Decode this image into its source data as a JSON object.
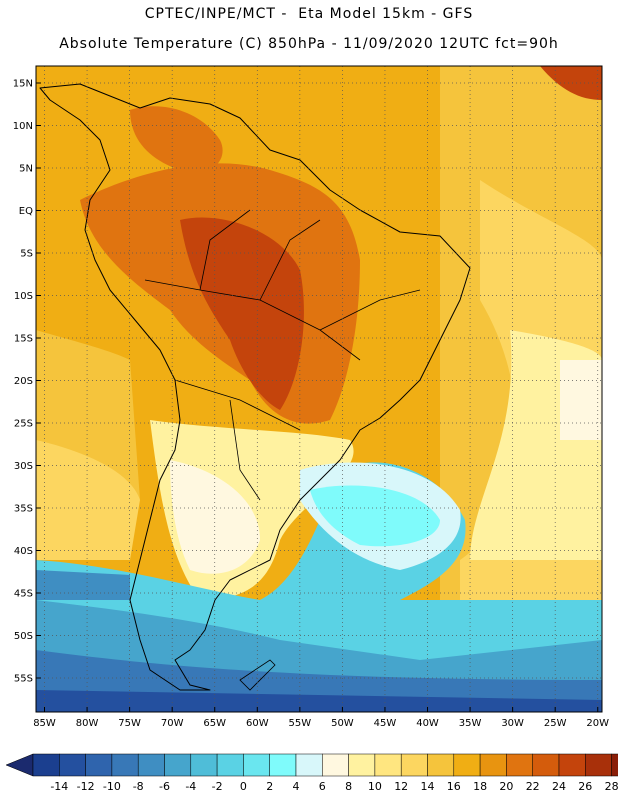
{
  "header": {
    "line1": "CPTEC/INPE/MCT -  Eta Model 15km - GFS",
    "line2": "Absolute Temperature (C) 850hPa - 11/09/2020 12UTC fct=90h"
  },
  "map": {
    "lat_labels": [
      "15N",
      "10N",
      "5N",
      "EQ",
      "5S",
      "10S",
      "15S",
      "20S",
      "25S",
      "30S",
      "35S",
      "40S",
      "45S",
      "50S",
      "55S"
    ],
    "lon_labels": [
      "85W",
      "80W",
      "75W",
      "70W",
      "65W",
      "60W",
      "55W",
      "50W",
      "45W",
      "40W",
      "35W",
      "30W",
      "25W",
      "20W"
    ],
    "lat_values": [
      15,
      10,
      5,
      0,
      -5,
      -10,
      -15,
      -20,
      -25,
      -30,
      -35,
      -40,
      -45,
      -50,
      -55
    ],
    "lon_values": [
      -85,
      -80,
      -75,
      -70,
      -65,
      -60,
      -55,
      -50,
      -45,
      -40,
      -35,
      -30,
      -25,
      -20
    ]
  },
  "colorbar": {
    "labels": [
      "-14",
      "-12",
      "-10",
      "-8",
      "-6",
      "-4",
      "-2",
      "0",
      "2",
      "4",
      "6",
      "8",
      "10",
      "12",
      "14",
      "16",
      "18",
      "20",
      "22",
      "24",
      "26",
      "28"
    ],
    "colors": [
      "#1b3f8f",
      "#24509f",
      "#2f64ad",
      "#3878b7",
      "#3f8ec2",
      "#46a5cc",
      "#4fbdd8",
      "#5ad2e4",
      "#6ae6ef",
      "#7ffbfb",
      "#d8f7fa",
      "#fff8e0",
      "#fff2a0",
      "#ffe680",
      "#fcd660",
      "#f5c43c",
      "#f0ae14",
      "#e89410",
      "#e07410",
      "#d45c0c",
      "#c4440c",
      "#a8300a",
      "#8a1e08",
      "#6a0e06"
    ],
    "arrow_left_color": "#1b2a6e",
    "arrow_right_color": "#8a0020"
  }
}
